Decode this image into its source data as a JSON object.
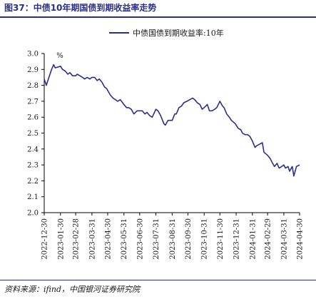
{
  "header": {
    "title": "图37：中债10年期国债到期收益率走势"
  },
  "footer": {
    "source": "资料来源：ifind，中国银河证券研究院"
  },
  "chart_data": {
    "type": "line",
    "title": "",
    "xlabel": "",
    "ylabel": "%",
    "ylim": [
      2.0,
      3.0
    ],
    "yticks": [
      "3.0",
      "2.9",
      "2.8",
      "2.7",
      "2.6",
      "2.5",
      "2.4",
      "2.3",
      "2.2",
      "2.1",
      "2.0"
    ],
    "xticks": [
      "2022-12-30",
      "2023-01-30",
      "2023-02-28",
      "2023-03-31",
      "2023-04-30",
      "2023-05-31",
      "2023-06-30",
      "2023-07-31",
      "2023-08-31",
      "2023-09-30",
      "2023-10-31",
      "2023-11-30",
      "2023-12-31",
      "2024-01-31",
      "2024-02-29",
      "2024-03-31",
      "2024-04-30"
    ],
    "legend_position": "top-right",
    "grid": false,
    "series": [
      {
        "name": "中债国债到期收益率:10年",
        "color": "#2b2f8a",
        "x": [
          "2022-12-30",
          "2023-01-03",
          "2023-01-06",
          "2023-01-10",
          "2023-01-13",
          "2023-01-17",
          "2023-01-20",
          "2023-01-30",
          "2023-02-03",
          "2023-02-08",
          "2023-02-13",
          "2023-02-17",
          "2023-02-22",
          "2023-02-28",
          "2023-03-03",
          "2023-03-08",
          "2023-03-13",
          "2023-03-17",
          "2023-03-22",
          "2023-03-27",
          "2023-03-31",
          "2023-04-05",
          "2023-04-10",
          "2023-04-14",
          "2023-04-19",
          "2023-04-24",
          "2023-04-28",
          "2023-05-05",
          "2023-05-10",
          "2023-05-15",
          "2023-05-19",
          "2023-05-24",
          "2023-05-31",
          "2023-06-05",
          "2023-06-09",
          "2023-06-14",
          "2023-06-19",
          "2023-06-25",
          "2023-06-30",
          "2023-07-05",
          "2023-07-10",
          "2023-07-14",
          "2023-07-19",
          "2023-07-24",
          "2023-07-31",
          "2023-08-04",
          "2023-08-09",
          "2023-08-15",
          "2023-08-18",
          "2023-08-23",
          "2023-08-31",
          "2023-09-05",
          "2023-09-08",
          "2023-09-13",
          "2023-09-18",
          "2023-09-22",
          "2023-09-28",
          "2023-10-09",
          "2023-10-13",
          "2023-10-18",
          "2023-10-23",
          "2023-10-27",
          "2023-10-31",
          "2023-11-06",
          "2023-11-10",
          "2023-11-15",
          "2023-11-20",
          "2023-11-24",
          "2023-11-30",
          "2023-12-05",
          "2023-12-08",
          "2023-12-13",
          "2023-12-18",
          "2023-12-22",
          "2023-12-29",
          "2024-01-04",
          "2024-01-09",
          "2024-01-12",
          "2024-01-17",
          "2024-01-22",
          "2024-01-26",
          "2024-01-31",
          "2024-02-05",
          "2024-02-08",
          "2024-02-19",
          "2024-02-22",
          "2024-02-29",
          "2024-03-05",
          "2024-03-08",
          "2024-03-13",
          "2024-03-18",
          "2024-03-22",
          "2024-03-27",
          "2024-03-31",
          "2024-04-03",
          "2024-04-08",
          "2024-04-11",
          "2024-04-16",
          "2024-04-19",
          "2024-04-24",
          "2024-04-30"
        ],
        "values": [
          2.84,
          2.8,
          2.83,
          2.87,
          2.9,
          2.93,
          2.91,
          2.92,
          2.9,
          2.89,
          2.87,
          2.88,
          2.86,
          2.86,
          2.87,
          2.86,
          2.85,
          2.84,
          2.85,
          2.84,
          2.85,
          2.85,
          2.83,
          2.84,
          2.82,
          2.79,
          2.78,
          2.74,
          2.72,
          2.71,
          2.7,
          2.71,
          2.68,
          2.66,
          2.66,
          2.65,
          2.62,
          2.64,
          2.64,
          2.64,
          2.62,
          2.63,
          2.61,
          2.6,
          2.65,
          2.64,
          2.61,
          2.56,
          2.55,
          2.58,
          2.58,
          2.62,
          2.62,
          2.66,
          2.67,
          2.69,
          2.7,
          2.72,
          2.71,
          2.69,
          2.68,
          2.65,
          2.66,
          2.68,
          2.64,
          2.64,
          2.65,
          2.66,
          2.7,
          2.67,
          2.66,
          2.62,
          2.6,
          2.58,
          2.56,
          2.53,
          2.52,
          2.5,
          2.49,
          2.49,
          2.48,
          2.45,
          2.41,
          2.42,
          2.44,
          2.38,
          2.36,
          2.34,
          2.32,
          2.29,
          2.31,
          2.28,
          2.29,
          2.3,
          2.28,
          2.29,
          2.26,
          2.29,
          2.23,
          2.29,
          2.3
        ]
      }
    ]
  }
}
